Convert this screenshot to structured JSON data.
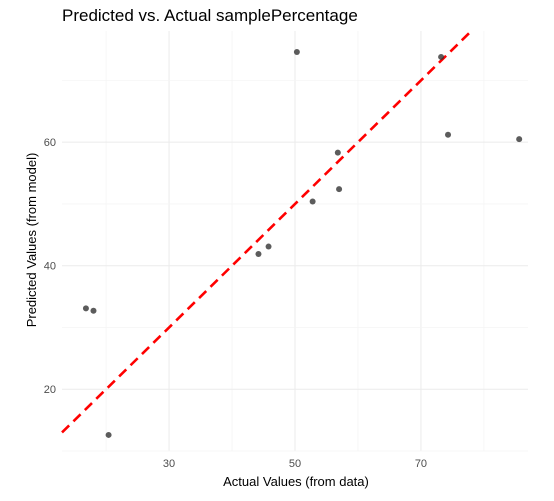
{
  "chart_data": {
    "type": "scatter",
    "title": "Predicted vs. Actual samplePercentage",
    "xlabel": "Actual Values (from data)",
    "ylabel": "Predicted Values (from model)",
    "xlim": [
      13,
      87
    ],
    "ylim": [
      10,
      78
    ],
    "x_ticks": [
      30,
      50,
      70
    ],
    "y_ticks": [
      20,
      40,
      60
    ],
    "x_tick_labels": [
      "30",
      "50",
      "70"
    ],
    "y_tick_labels": [
      "20",
      "40",
      "60"
    ],
    "grid": true,
    "reference_line": {
      "slope": 1,
      "intercept": 0,
      "style": "dashed",
      "color": "#ff0000"
    },
    "point_color": "#333333",
    "points": [
      {
        "x": 16.8,
        "y": 33.1
      },
      {
        "x": 18.0,
        "y": 32.7
      },
      {
        "x": 20.4,
        "y": 12.6
      },
      {
        "x": 44.2,
        "y": 41.9
      },
      {
        "x": 45.8,
        "y": 43.1
      },
      {
        "x": 50.3,
        "y": 74.6
      },
      {
        "x": 52.8,
        "y": 50.4
      },
      {
        "x": 56.8,
        "y": 58.3
      },
      {
        "x": 57.0,
        "y": 52.4
      },
      {
        "x": 73.2,
        "y": 73.8
      },
      {
        "x": 74.3,
        "y": 61.2
      },
      {
        "x": 85.6,
        "y": 60.5
      }
    ]
  }
}
